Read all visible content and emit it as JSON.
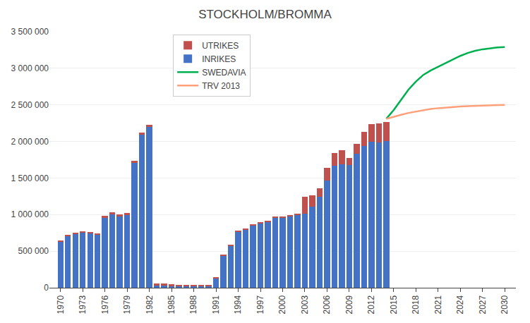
{
  "chart_data": {
    "type": "bar",
    "title": "STOCKHOLM/BROMMA",
    "stacked": true,
    "grid": "y",
    "legend": "upper left",
    "x": [
      1970,
      1971,
      1972,
      1973,
      1974,
      1975,
      1976,
      1977,
      1978,
      1979,
      1980,
      1981,
      1982,
      1983,
      1984,
      1985,
      1986,
      1987,
      1988,
      1989,
      1990,
      1991,
      1992,
      1993,
      1994,
      1995,
      1996,
      1997,
      1998,
      1999,
      2000,
      2001,
      2002,
      2003,
      2004,
      2005,
      2006,
      2007,
      2008,
      2009,
      2010,
      2011,
      2012,
      2013,
      2014
    ],
    "series": [
      {
        "name": "INRIKES",
        "type": "bar",
        "color": "#4472C4",
        "values": [
          630000,
          700000,
          730000,
          750000,
          740000,
          720000,
          950000,
          1000000,
          970000,
          990000,
          1710000,
          2090000,
          2200000,
          30000,
          25000,
          20000,
          20000,
          20000,
          20000,
          20000,
          20000,
          130000,
          440000,
          570000,
          760000,
          790000,
          850000,
          880000,
          900000,
          950000,
          950000,
          975000,
          990000,
          1010000,
          1110000,
          1240000,
          1470000,
          1670000,
          1690000,
          1680000,
          1830000,
          1940000,
          2000000,
          1990000,
          2010000
        ]
      },
      {
        "name": "UTRIKES",
        "type": "bar",
        "color": "#C0504D",
        "values": [
          20000,
          20000,
          20000,
          20000,
          20000,
          20000,
          30000,
          30000,
          30000,
          30000,
          30000,
          30000,
          30000,
          30000,
          30000,
          30000,
          20000,
          10000,
          10000,
          10000,
          10000,
          10000,
          10000,
          10000,
          20000,
          20000,
          20000,
          20000,
          20000,
          20000,
          20000,
          20000,
          20000,
          230000,
          150000,
          120000,
          170000,
          170000,
          190000,
          90000,
          140000,
          190000,
          240000,
          260000,
          260000
        ]
      },
      {
        "name": "SWEDAVIA",
        "type": "line",
        "color": "#00B050",
        "x": [
          2014,
          2015,
          2016,
          2017,
          2018,
          2019,
          2020,
          2021,
          2022,
          2023,
          2024,
          2025,
          2026,
          2027,
          2028,
          2029,
          2030
        ],
        "values": [
          2310000,
          2430000,
          2570000,
          2710000,
          2820000,
          2910000,
          2970000,
          3020000,
          3070000,
          3120000,
          3170000,
          3210000,
          3240000,
          3260000,
          3275000,
          3285000,
          3290000
        ]
      },
      {
        "name": "TRV 2013",
        "type": "line",
        "color": "#FFA07A",
        "x": [
          2014,
          2015,
          2016,
          2017,
          2018,
          2019,
          2020,
          2021,
          2022,
          2023,
          2024,
          2025,
          2026,
          2027,
          2028,
          2029,
          2030
        ],
        "values": [
          2310000,
          2340000,
          2365000,
          2390000,
          2410000,
          2430000,
          2445000,
          2455000,
          2465000,
          2472000,
          2478000,
          2483000,
          2488000,
          2492000,
          2495000,
          2498000,
          2500000
        ]
      }
    ],
    "xlim": [
      1968.5,
      2031.5
    ],
    "xticks": [
      1970,
      1973,
      1976,
      1979,
      1982,
      1985,
      1988,
      1991,
      1994,
      1997,
      2000,
      2003,
      2006,
      2009,
      2012,
      2015,
      2018,
      2021,
      2024,
      2027,
      2030
    ],
    "ylim": [
      0,
      3500000
    ],
    "yticks": [
      0,
      {
        "value": 500000,
        "label": "500 000"
      },
      {
        "value": 1000000,
        "label": "1 000 000"
      },
      {
        "value": 1500000,
        "label": "1 500 000"
      },
      {
        "value": 2000000,
        "label": "2 000 000"
      },
      {
        "value": 2500000,
        "label": "2 500 000"
      },
      {
        "value": 3000000,
        "label": "3 000 000"
      },
      {
        "value": 3500000,
        "label": "3 500 000"
      }
    ]
  }
}
